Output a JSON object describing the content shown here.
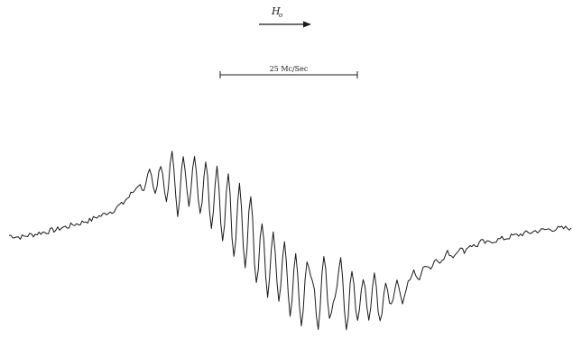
{
  "chart_data": {
    "type": "line",
    "title": "",
    "xlabel": "",
    "ylabel": "",
    "grid": false,
    "legend": "none",
    "field_label": {
      "symbol": "H",
      "subscript": "o",
      "arrow": "right"
    },
    "scale_bar": {
      "label": "25 Mc/Sec"
    },
    "trace_color": "#1a1a1a",
    "background": "#ffffff",
    "xlim": [
      0,
      100
    ],
    "ylim": [
      -1.3,
      1.3
    ],
    "series": [
      {
        "x": [
          0,
          2,
          4,
          6,
          8,
          10,
          12,
          14,
          16,
          18,
          20,
          21,
          22,
          23,
          24,
          25,
          26,
          27,
          28,
          29,
          30,
          31,
          32,
          33,
          34,
          35,
          36,
          37,
          38,
          39,
          40,
          41,
          42,
          43,
          44,
          45,
          46,
          47,
          48,
          49,
          50,
          51,
          52,
          53,
          54,
          55,
          56,
          57,
          58,
          59,
          60,
          61,
          62,
          63,
          64,
          65,
          66,
          67,
          68,
          69,
          70,
          71,
          72,
          73,
          74,
          75,
          76,
          77,
          78,
          79,
          80,
          81,
          82,
          83,
          84,
          85,
          86,
          88,
          90,
          92,
          94,
          96,
          98,
          100
        ],
        "y": [
          0.02,
          0.0,
          0.03,
          0.06,
          0.09,
          0.13,
          0.17,
          0.21,
          0.27,
          0.33,
          0.42,
          0.5,
          0.58,
          0.68,
          0.62,
          0.85,
          0.55,
          0.95,
          0.48,
          1.1,
          0.3,
          1.05,
          0.4,
          1.05,
          0.28,
          1.0,
          0.1,
          0.9,
          -0.02,
          0.8,
          -0.25,
          0.7,
          -0.38,
          0.55,
          -0.6,
          0.2,
          -0.75,
          0.05,
          -0.85,
          -0.05,
          -1.0,
          -0.2,
          -1.15,
          -0.35,
          -0.55,
          -1.2,
          -0.25,
          -1.05,
          -0.8,
          -0.3,
          -1.2,
          -0.45,
          -1.1,
          -0.55,
          -1.05,
          -0.5,
          -1.1,
          -0.6,
          -0.9,
          -0.55,
          -0.85,
          -0.6,
          -0.45,
          -0.55,
          -0.35,
          -0.4,
          -0.28,
          -0.32,
          -0.2,
          -0.25,
          -0.15,
          -0.18,
          -0.1,
          -0.12,
          -0.06,
          -0.08,
          -0.05,
          -0.02,
          0.02,
          0.05,
          0.08,
          0.1,
          0.11,
          0.12
        ]
      }
    ]
  }
}
